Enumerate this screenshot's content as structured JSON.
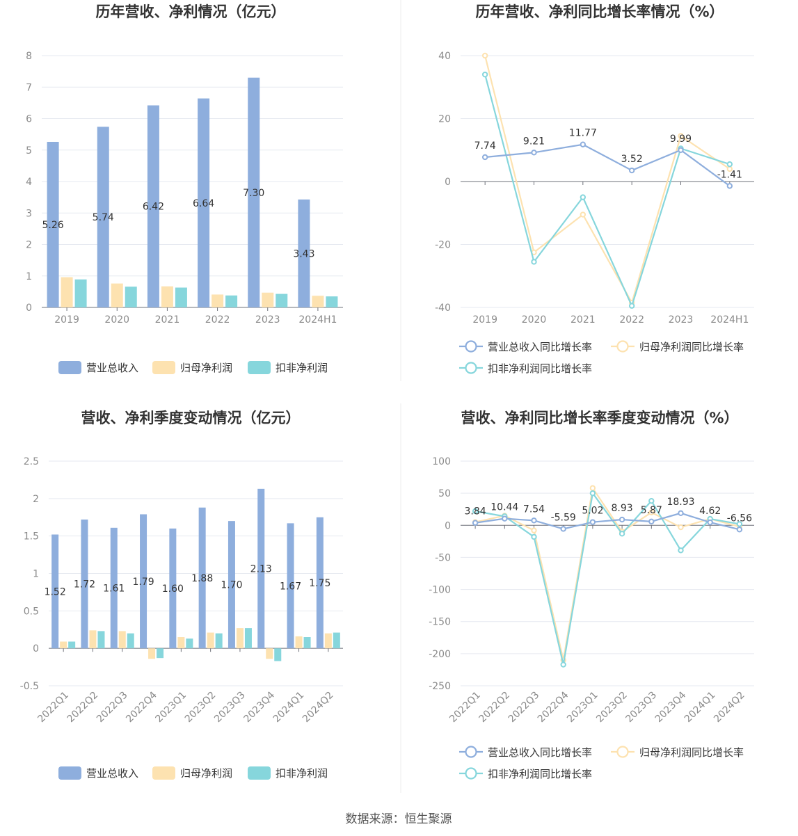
{
  "footer": {
    "source": "数据来源：恒生聚源"
  },
  "colors": {
    "revenue": "#8eaedd",
    "net_profit": "#fde2b0",
    "deducted_profit": "#86d6dc",
    "line_rev": "#8eaedd",
    "line_net": "#fde2b0",
    "line_ded": "#86d6dc"
  },
  "chart_data": [
    {
      "type": "bar",
      "title": "历年营收、净利情况（亿元）",
      "categories": [
        "2019",
        "2020",
        "2021",
        "2022",
        "2023",
        "2024H1"
      ],
      "ylim": [
        0,
        8
      ],
      "yticks": [
        "0",
        "1",
        "2",
        "3",
        "4",
        "5",
        "6",
        "7",
        "8"
      ],
      "series": [
        {
          "name": "营业总收入",
          "values": [
            5.26,
            5.74,
            6.42,
            6.64,
            7.3,
            3.43
          ],
          "labels": [
            "5.26",
            "5.74",
            "6.42",
            "6.64",
            "7.30",
            "3.43"
          ]
        },
        {
          "name": "归母净利润",
          "values": [
            0.96,
            0.76,
            0.67,
            0.41,
            0.47,
            0.37
          ]
        },
        {
          "name": "扣非净利润",
          "values": [
            0.89,
            0.66,
            0.63,
            0.38,
            0.43,
            0.35
          ]
        }
      ],
      "legend": "bottom"
    },
    {
      "type": "line",
      "title": "历年营收、净利同比增长率情况（%）",
      "categories": [
        "2019",
        "2020",
        "2021",
        "2022",
        "2023",
        "2024H1"
      ],
      "ylim": [
        -40,
        40
      ],
      "yticks": [
        "-40",
        "-20",
        "0",
        "20",
        "40"
      ],
      "series": [
        {
          "name": "营业总收入同比增长率",
          "values": [
            7.74,
            9.21,
            11.77,
            3.52,
            9.99,
            -1.41
          ],
          "labels": [
            "7.74",
            "9.21",
            "11.77",
            "3.52",
            "9.99",
            "-1.41"
          ]
        },
        {
          "name": "归母净利润同比增长率",
          "values": [
            40.0,
            -22.5,
            -10.5,
            -38.5,
            14.5,
            4.0
          ]
        },
        {
          "name": "扣非净利润同比增长率",
          "values": [
            34.0,
            -25.5,
            -5.0,
            -39.5,
            10.5,
            5.5
          ]
        }
      ],
      "legend": "bottom"
    },
    {
      "type": "bar",
      "title": "营收、净利季度变动情况（亿元）",
      "categories": [
        "2022Q1",
        "2022Q2",
        "2022Q3",
        "2022Q4",
        "2023Q1",
        "2023Q2",
        "2023Q3",
        "2023Q4",
        "2024Q1",
        "2024Q2"
      ],
      "ylim": [
        -0.5,
        2.5
      ],
      "yticks": [
        "-0.5",
        "0",
        "0.5",
        "1",
        "1.5",
        "2",
        "2.5"
      ],
      "series": [
        {
          "name": "营业总收入",
          "values": [
            1.52,
            1.72,
            1.61,
            1.79,
            1.6,
            1.88,
            1.7,
            2.13,
            1.67,
            1.75
          ],
          "labels": [
            "1.52",
            "1.72",
            "1.61",
            "1.79",
            "1.60",
            "1.88",
            "1.70",
            "2.13",
            "1.67",
            "1.75"
          ]
        },
        {
          "name": "归母净利润",
          "values": [
            0.09,
            0.24,
            0.23,
            -0.14,
            0.15,
            0.21,
            0.27,
            -0.14,
            0.16,
            0.2
          ]
        },
        {
          "name": "扣非净利润",
          "values": [
            0.09,
            0.23,
            0.2,
            -0.13,
            0.13,
            0.2,
            0.27,
            -0.17,
            0.15,
            0.21
          ]
        }
      ],
      "legend": "bottom"
    },
    {
      "type": "line",
      "title": "营收、净利同比增长率季度变动情况（%）",
      "categories": [
        "2022Q1",
        "2022Q2",
        "2022Q3",
        "2022Q4",
        "2023Q1",
        "2023Q2",
        "2023Q3",
        "2023Q4",
        "2024Q1",
        "2024Q2"
      ],
      "ylim": [
        -250,
        100
      ],
      "yticks": [
        "-250",
        "-200",
        "-150",
        "-100",
        "-50",
        "0",
        "50",
        "100"
      ],
      "series": [
        {
          "name": "营业总收入同比增长率",
          "values": [
            3.84,
            10.44,
            7.54,
            -5.59,
            5.02,
            8.93,
            5.87,
            18.93,
            4.62,
            -6.56
          ],
          "labels": [
            "3.84",
            "10.44",
            "7.54",
            "-5.59",
            "5.02",
            "8.93",
            "5.87",
            "18.93",
            "4.62",
            "-6.56"
          ]
        },
        {
          "name": "归母净利润同比增长率",
          "values": [
            5,
            15,
            -8,
            -210,
            58,
            -10,
            20,
            -3,
            10,
            -2
          ]
        },
        {
          "name": "扣非净利润同比增长率",
          "values": [
            22,
            14,
            -18,
            -217,
            50,
            -13,
            38,
            -39,
            10,
            2
          ]
        }
      ],
      "legend": "bottom"
    }
  ]
}
